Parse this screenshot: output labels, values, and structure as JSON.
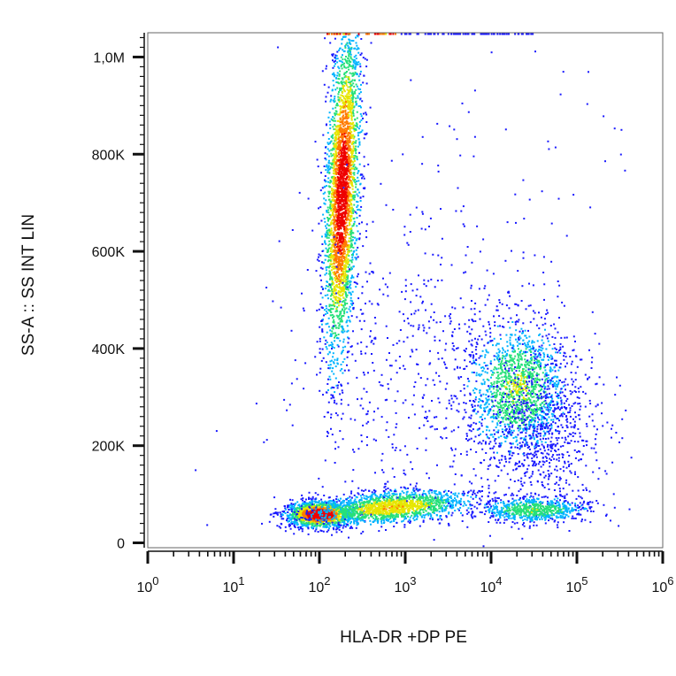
{
  "chart_data": {
    "type": "scatter",
    "subtype": "flow-cytometry density dot plot",
    "xlabel": "HLA-DR +DP PE",
    "ylabel": "SS-A :: SS INT LIN",
    "x_scale": "log",
    "xlim": [
      1,
      1000000
    ],
    "ylim": [
      -10000,
      1050000
    ],
    "x_ticks": [
      {
        "value": 1,
        "base": "10",
        "exp": "0"
      },
      {
        "value": 10,
        "base": "10",
        "exp": "1"
      },
      {
        "value": 100,
        "base": "10",
        "exp": "2"
      },
      {
        "value": 1000,
        "base": "10",
        "exp": "3"
      },
      {
        "value": 10000,
        "base": "10",
        "exp": "4"
      },
      {
        "value": 100000,
        "base": "10",
        "exp": "5"
      },
      {
        "value": 1000000,
        "base": "10",
        "exp": "6"
      }
    ],
    "y_ticks": [
      {
        "value": 0,
        "label": "0"
      },
      {
        "value": 200000,
        "label": "200K"
      },
      {
        "value": 400000,
        "label": "400K"
      },
      {
        "value": 600000,
        "label": "600K"
      },
      {
        "value": 800000,
        "label": "800K"
      },
      {
        "value": 1000000,
        "label": "1,0M"
      }
    ],
    "grid": false,
    "color_scale": [
      "#1a1aff",
      "#00b4ff",
      "#27e07a",
      "#e6e600",
      "#ff7a00",
      "#ee0000"
    ],
    "populations": [
      {
        "x_center": 100,
        "y_center": 60000,
        "density": "highest"
      },
      {
        "x_center": 180,
        "y_center": 720000,
        "density": "high"
      },
      {
        "x_center": 20000,
        "y_center": 320000,
        "density": "medium"
      },
      {
        "x_center": 30000,
        "y_center": 70000,
        "density": "low"
      }
    ]
  }
}
